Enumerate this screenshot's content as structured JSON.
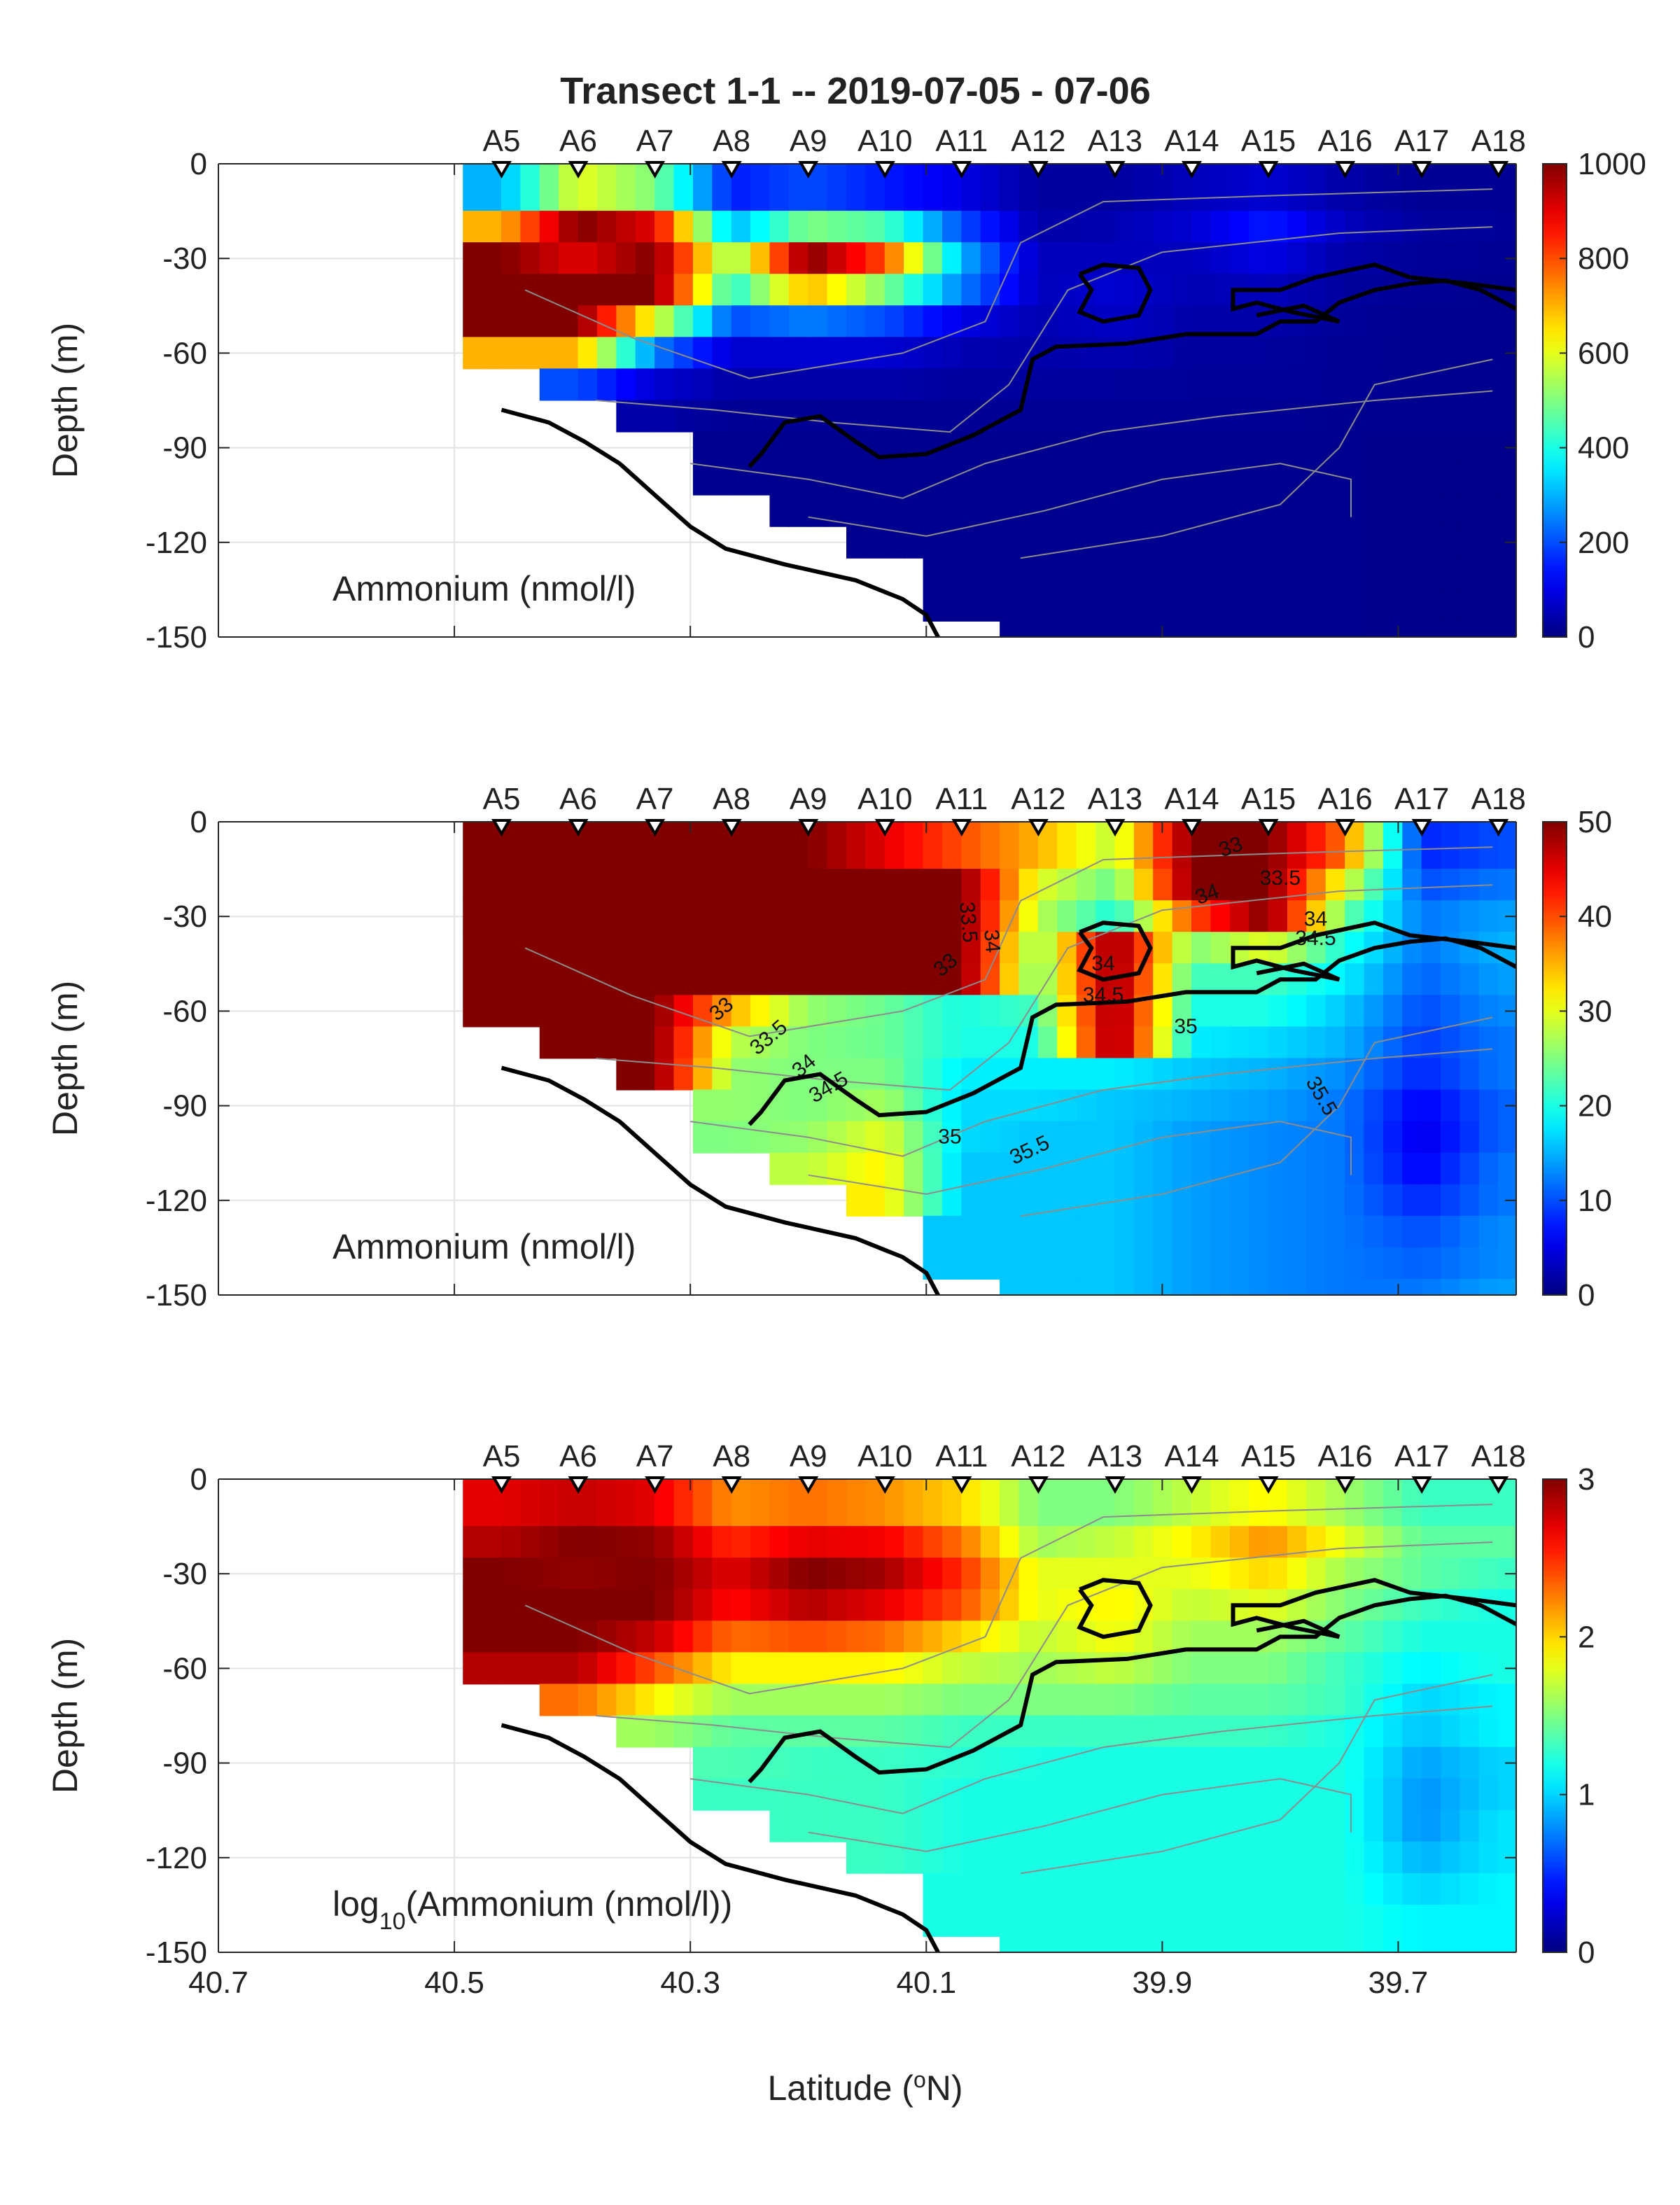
{
  "figure": {
    "title": "Transect 1-1 -- 2019-07-05 - 07-06",
    "xlabel_prefix": "Latitude (",
    "xlabel_sup": "o",
    "xlabel_suffix": "N)",
    "ylabel": "Depth (m)",
    "colormap": "jet"
  },
  "chart_data": [
    {
      "type": "heatmap",
      "panel_label": "Ammonium (nmol/l)",
      "xlim": [
        40.7,
        39.6
      ],
      "ylim": [
        -150,
        0
      ],
      "xticks": [
        "40.7",
        "40.5",
        "40.3",
        "40.1",
        "39.9",
        "39.7"
      ],
      "yticks": [
        "0",
        "-30",
        "-60",
        "-90",
        "-120",
        "-150"
      ],
      "colorbar": {
        "range": [
          0,
          1000
        ],
        "ticks": [
          "0",
          "200",
          "400",
          "600",
          "800",
          "1000"
        ]
      },
      "stations": [
        "A5",
        "A6",
        "A7",
        "A8",
        "A9",
        "A10",
        "A11",
        "A12",
        "A13",
        "A14",
        "A15",
        "A16",
        "A17",
        "A18"
      ],
      "station_latitudes": [
        40.46,
        40.395,
        40.33,
        40.265,
        40.2,
        40.135,
        40.07,
        40.005,
        39.94,
        39.875,
        39.81,
        39.745,
        39.68,
        39.615
      ],
      "bottom_depth_m": [
        -78,
        -90,
        -105,
        -120,
        -128,
        -140,
        -150,
        -150,
        -150,
        -150,
        -150,
        -150,
        -150,
        -150
      ],
      "profile_depths_m": [
        10,
        20,
        30,
        40,
        50,
        60,
        70,
        80,
        90,
        100,
        110,
        120,
        130,
        140,
        150
      ],
      "values": [
        [
          300,
          700,
          1000,
          1000,
          1000,
          700,
          null,
          null,
          null,
          null,
          null,
          null,
          null,
          null,
          null
        ],
        [
          600,
          1000,
          900,
          1000,
          1000,
          700,
          200,
          null,
          null,
          null,
          null,
          null,
          null,
          null,
          null
        ],
        [
          500,
          900,
          1000,
          1000,
          600,
          250,
          80,
          40,
          null,
          null,
          null,
          null,
          null,
          null,
          null
        ],
        [
          150,
          300,
          500,
          400,
          200,
          80,
          40,
          20,
          15,
          15,
          null,
          null,
          null,
          null,
          null
        ],
        [
          200,
          500,
          1000,
          700,
          250,
          80,
          40,
          20,
          15,
          15,
          15,
          null,
          null,
          null,
          null
        ],
        [
          150,
          450,
          800,
          500,
          200,
          80,
          40,
          20,
          15,
          15,
          15,
          15,
          null,
          null,
          null
        ],
        [
          100,
          200,
          300,
          250,
          100,
          50,
          30,
          20,
          15,
          15,
          15,
          15,
          15,
          15,
          null
        ],
        [
          30,
          40,
          60,
          60,
          50,
          40,
          30,
          20,
          15,
          15,
          15,
          15,
          15,
          15,
          15
        ],
        [
          30,
          50,
          60,
          80,
          70,
          50,
          30,
          20,
          15,
          15,
          15,
          15,
          15,
          15,
          15
        ],
        [
          60,
          80,
          60,
          50,
          40,
          30,
          25,
          20,
          15,
          15,
          15,
          15,
          15,
          15,
          15
        ],
        [
          80,
          150,
          100,
          60,
          40,
          30,
          25,
          20,
          15,
          15,
          15,
          15,
          15,
          15,
          15
        ],
        [
          40,
          60,
          40,
          30,
          25,
          20,
          20,
          15,
          15,
          15,
          15,
          15,
          15,
          15,
          15
        ],
        [
          20,
          30,
          25,
          20,
          15,
          15,
          15,
          15,
          10,
          10,
          10,
          10,
          10,
          10,
          10
        ],
        [
          20,
          25,
          20,
          15,
          15,
          15,
          15,
          15,
          10,
          10,
          10,
          10,
          10,
          10,
          10
        ]
      ],
      "contour_labels": []
    },
    {
      "type": "heatmap",
      "panel_label": "Ammonium (nmol/l)",
      "xlim": [
        40.7,
        39.6
      ],
      "ylim": [
        -150,
        0
      ],
      "xticks": [
        "40.7",
        "40.5",
        "40.3",
        "40.1",
        "39.9",
        "39.7"
      ],
      "yticks": [
        "0",
        "-30",
        "-60",
        "-90",
        "-120",
        "-150"
      ],
      "colorbar": {
        "range": [
          0,
          50
        ],
        "ticks": [
          "0",
          "10",
          "20",
          "30",
          "40",
          "50"
        ]
      },
      "stations": [
        "A5",
        "A6",
        "A7",
        "A8",
        "A9",
        "A10",
        "A11",
        "A12",
        "A13",
        "A14",
        "A15",
        "A16",
        "A17",
        "A18"
      ],
      "station_latitudes": [
        40.46,
        40.395,
        40.33,
        40.265,
        40.2,
        40.135,
        40.07,
        40.005,
        39.94,
        39.875,
        39.81,
        39.745,
        39.68,
        39.615
      ],
      "bottom_depth_m": [
        -78,
        -90,
        -105,
        -120,
        -128,
        -140,
        -150,
        -150,
        -150,
        -150,
        -150,
        -150,
        -150,
        -150
      ],
      "profile_depths_m": [
        10,
        20,
        30,
        40,
        50,
        60,
        70,
        80,
        90,
        100,
        110,
        120,
        130,
        140,
        150
      ],
      "values": [
        [
          50,
          50,
          50,
          50,
          50,
          50,
          null,
          null,
          null,
          null,
          null,
          null,
          null,
          null,
          null
        ],
        [
          50,
          50,
          50,
          50,
          50,
          50,
          50,
          null,
          null,
          null,
          null,
          null,
          null,
          null,
          null
        ],
        [
          50,
          50,
          50,
          50,
          50,
          50,
          50,
          50,
          null,
          null,
          null,
          null,
          null,
          null,
          null
        ],
        [
          50,
          50,
          50,
          50,
          50,
          35,
          28,
          26,
          26,
          25,
          null,
          null,
          null,
          null,
          null
        ],
        [
          50,
          50,
          50,
          50,
          50,
          26,
          25,
          25,
          25,
          26,
          28,
          null,
          null,
          null,
          null
        ],
        [
          45,
          50,
          50,
          50,
          50,
          24,
          24,
          25,
          27,
          30,
          32,
          32,
          null,
          null,
          null
        ],
        [
          40,
          50,
          50,
          50,
          50,
          20,
          20,
          18,
          17,
          17,
          16,
          16,
          16,
          16,
          null
        ],
        [
          35,
          30,
          28,
          25,
          24,
          22,
          20,
          18,
          17,
          16,
          16,
          16,
          16,
          16,
          16
        ],
        [
          28,
          24,
          20,
          50,
          50,
          50,
          50,
          18,
          16,
          16,
          16,
          16,
          16,
          16,
          16
        ],
        [
          50,
          50,
          40,
          25,
          22,
          20,
          18,
          16,
          15,
          14,
          14,
          14,
          14,
          14,
          14
        ],
        [
          50,
          50,
          50,
          30,
          22,
          20,
          17,
          15,
          14,
          13,
          13,
          13,
          13,
          13,
          13
        ],
        [
          38,
          30,
          24,
          20,
          18,
          16,
          15,
          13,
          12,
          12,
          12,
          12,
          12,
          12,
          12
        ],
        [
          8,
          10,
          12,
          12,
          11,
          10,
          9,
          8,
          6,
          5,
          6,
          8,
          10,
          11,
          12
        ],
        [
          10,
          12,
          14,
          15,
          14,
          13,
          12,
          12,
          11,
          11,
          12,
          12,
          13,
          13,
          14
        ]
      ],
      "contour_labels": [
        {
          "text": "33",
          "lat": 40.27,
          "depth": -61,
          "angle": -40
        },
        {
          "text": "33",
          "lat": 40.08,
          "depth": -47,
          "angle": -40
        },
        {
          "text": "33.5",
          "lat": 40.23,
          "depth": -70,
          "angle": -40
        },
        {
          "text": "33.5",
          "lat": 40.07,
          "depth": -32,
          "angle": 85
        },
        {
          "text": "34",
          "lat": 40.2,
          "depth": -79,
          "angle": -40
        },
        {
          "text": "34",
          "lat": 40.05,
          "depth": -38,
          "angle": 85
        },
        {
          "text": "34.5",
          "lat": 40.18,
          "depth": -86,
          "angle": -30
        },
        {
          "text": "35",
          "lat": 40.08,
          "depth": -102,
          "angle": 0
        },
        {
          "text": "35.5",
          "lat": 40.01,
          "depth": -106,
          "angle": -25
        },
        {
          "text": "33",
          "lat": 39.84,
          "depth": -10,
          "angle": -20
        },
        {
          "text": "33.5",
          "lat": 39.8,
          "depth": -20,
          "angle": 0
        },
        {
          "text": "34",
          "lat": 39.86,
          "depth": -25,
          "angle": -20
        },
        {
          "text": "34",
          "lat": 39.77,
          "depth": -33,
          "angle": 0
        },
        {
          "text": "34.5",
          "lat": 39.77,
          "depth": -39,
          "angle": 0
        },
        {
          "text": "34",
          "lat": 39.95,
          "depth": -47,
          "angle": 0
        },
        {
          "text": "34.5",
          "lat": 39.95,
          "depth": -57,
          "angle": 0
        },
        {
          "text": "35",
          "lat": 39.88,
          "depth": -67,
          "angle": 0
        },
        {
          "text": "35.5",
          "lat": 39.77,
          "depth": -88,
          "angle": 60
        }
      ]
    },
    {
      "type": "heatmap",
      "panel_label_main": "log",
      "panel_label_sub": "10",
      "panel_label_rest": "(Ammonium (nmol/l))",
      "xlim": [
        40.7,
        39.6
      ],
      "ylim": [
        -150,
        0
      ],
      "xticks": [
        "40.7",
        "40.5",
        "40.3",
        "40.1",
        "39.9",
        "39.7"
      ],
      "yticks": [
        "0",
        "-30",
        "-60",
        "-90",
        "-120",
        "-150"
      ],
      "colorbar": {
        "range": [
          0,
          3
        ],
        "ticks": [
          "0",
          "1",
          "2",
          "3"
        ]
      },
      "stations": [
        "A5",
        "A6",
        "A7",
        "A8",
        "A9",
        "A10",
        "A11",
        "A12",
        "A13",
        "A14",
        "A15",
        "A16",
        "A17",
        "A18"
      ],
      "station_latitudes": [
        40.46,
        40.395,
        40.33,
        40.265,
        40.2,
        40.135,
        40.07,
        40.005,
        39.94,
        39.875,
        39.81,
        39.745,
        39.68,
        39.615
      ],
      "bottom_depth_m": [
        -78,
        -90,
        -105,
        -120,
        -128,
        -140,
        -150,
        -150,
        -150,
        -150,
        -150,
        -150,
        -150,
        -150
      ],
      "profile_depths_m": [
        10,
        20,
        30,
        40,
        50,
        60,
        70,
        80,
        90,
        100,
        110,
        120,
        130,
        140,
        150
      ],
      "values": [
        [
          2.7,
          2.85,
          3.0,
          3.0,
          3.0,
          2.85,
          null,
          null,
          null,
          null,
          null,
          null,
          null,
          null,
          null
        ],
        [
          2.8,
          3.0,
          2.95,
          3.0,
          3.0,
          2.85,
          2.3,
          null,
          null,
          null,
          null,
          null,
          null,
          null,
          null
        ],
        [
          2.7,
          2.95,
          3.0,
          3.0,
          2.8,
          2.4,
          1.9,
          1.6,
          null,
          null,
          null,
          null,
          null,
          null,
          null
        ],
        [
          2.2,
          2.5,
          2.7,
          2.6,
          2.3,
          1.9,
          1.6,
          1.4,
          1.35,
          1.3,
          null,
          null,
          null,
          null,
          null
        ],
        [
          2.3,
          2.7,
          3.0,
          2.85,
          2.4,
          1.9,
          1.6,
          1.4,
          1.3,
          1.3,
          1.3,
          null,
          null,
          null,
          null
        ],
        [
          2.2,
          2.65,
          2.9,
          2.7,
          2.3,
          1.9,
          1.6,
          1.4,
          1.3,
          1.3,
          1.3,
          1.3,
          null,
          null,
          null
        ],
        [
          2.0,
          2.3,
          2.5,
          2.4,
          2.0,
          1.7,
          1.5,
          1.3,
          1.25,
          1.2,
          1.2,
          1.2,
          1.2,
          1.2,
          null
        ],
        [
          1.5,
          1.6,
          1.8,
          1.8,
          1.7,
          1.6,
          1.5,
          1.3,
          1.2,
          1.2,
          1.2,
          1.2,
          1.2,
          1.2,
          1.2
        ],
        [
          1.5,
          1.7,
          1.8,
          1.9,
          1.85,
          1.7,
          1.5,
          1.3,
          1.2,
          1.2,
          1.2,
          1.2,
          1.2,
          1.2,
          1.2
        ],
        [
          1.7,
          1.9,
          1.8,
          1.7,
          1.6,
          1.5,
          1.4,
          1.3,
          1.2,
          1.2,
          1.2,
          1.2,
          1.2,
          1.2,
          1.2
        ],
        [
          1.9,
          2.2,
          2.0,
          1.8,
          1.6,
          1.5,
          1.4,
          1.3,
          1.2,
          1.2,
          1.2,
          1.2,
          1.2,
          1.2,
          1.2
        ],
        [
          1.6,
          1.8,
          1.6,
          1.5,
          1.4,
          1.3,
          1.3,
          1.2,
          1.2,
          1.2,
          1.2,
          1.2,
          1.2,
          1.2,
          1.2
        ],
        [
          1.3,
          1.4,
          1.4,
          1.3,
          1.2,
          1.1,
          1.0,
          0.95,
          0.85,
          0.8,
          0.8,
          0.9,
          1.0,
          1.1,
          1.1
        ],
        [
          1.3,
          1.4,
          1.3,
          1.2,
          1.2,
          1.2,
          1.1,
          1.1,
          1.0,
          1.0,
          1.05,
          1.05,
          1.1,
          1.1,
          1.1
        ]
      ],
      "contour_labels": []
    }
  ]
}
